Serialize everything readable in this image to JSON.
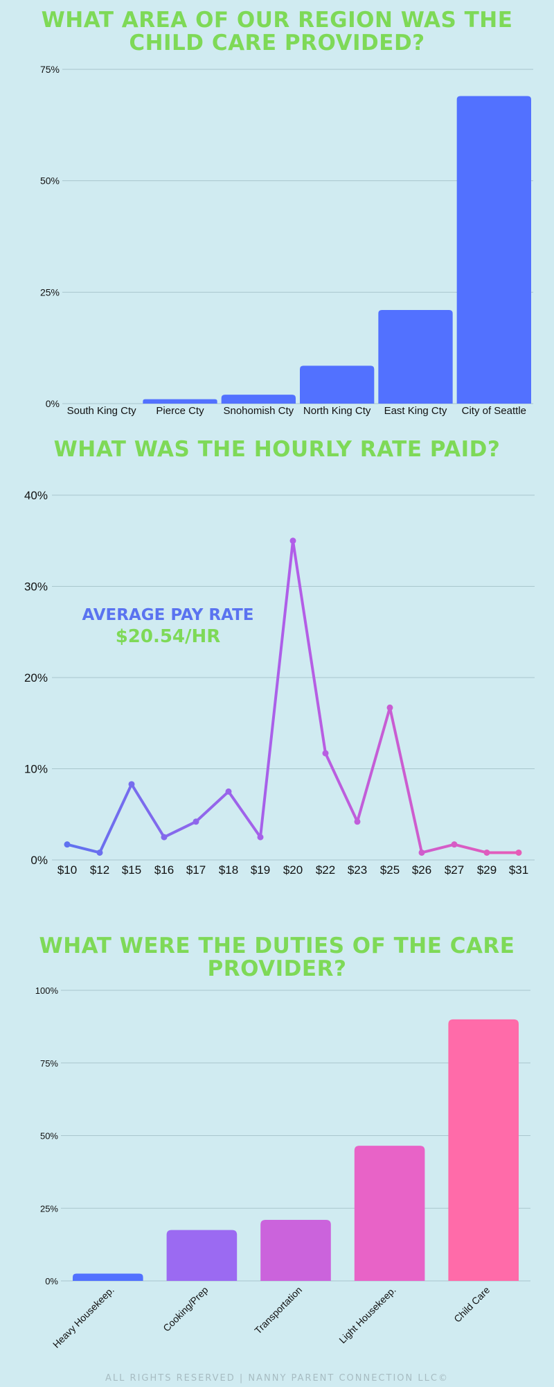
{
  "region_chart": {
    "title": "WHAT AREA OF OUR REGION WAS THE CHILD CARE PROVIDED?",
    "y_tick_labels": [
      "0%",
      "25%",
      "50%",
      "75%"
    ],
    "bar_color": "#5271ff"
  },
  "rate_chart": {
    "title": "WHAT WAS THE HOURLY RATE PAID?",
    "y_tick_labels": [
      "0%",
      "10%",
      "20%",
      "30%",
      "40%"
    ],
    "avg_title": "AVERAGE PAY RATE",
    "avg_value": "$20.54/HR",
    "gradient_start": "#5a73f0",
    "gradient_mid": "#b15ee8",
    "gradient_end": "#ea5cb4"
  },
  "duties_chart": {
    "title": "WHAT WERE THE DUTIES OF THE CARE PROVIDER?",
    "y_tick_labels": [
      "0%",
      "25%",
      "50%",
      "75%",
      "100%"
    ],
    "bar_colors": [
      "#5271ff",
      "#9b6af2",
      "#cb63dc",
      "#e863c7",
      "#ff6ba9"
    ]
  },
  "footer": "ALL RIGHTS RESERVED | NANNY PARENT CONNECTION LLC©",
  "chart_data": [
    {
      "type": "bar",
      "title": "WHAT AREA OF OUR REGION WAS THE CHILD CARE PROVIDED?",
      "categories": [
        "South King Cty",
        "Pierce Cty",
        "Snohomish Cty",
        "North King Cty",
        "East King Cty",
        "City of Seattle"
      ],
      "values": [
        0,
        1,
        2,
        8.5,
        21,
        69
      ],
      "unit": "%",
      "ylim": [
        0,
        75
      ],
      "grid": true
    },
    {
      "type": "line",
      "title": "WHAT WAS THE HOURLY RATE PAID?",
      "categories": [
        "$10",
        "$12",
        "$15",
        "$16",
        "$17",
        "$18",
        "$19",
        "$20",
        "$22",
        "$23",
        "$25",
        "$26",
        "$27",
        "$29",
        "$31"
      ],
      "values": [
        1.7,
        0.8,
        8.3,
        2.5,
        4.2,
        7.5,
        2.5,
        35,
        11.7,
        4.2,
        16.7,
        0.8,
        1.7,
        0.8,
        0.8
      ],
      "unit": "%",
      "ylim": [
        0,
        40
      ],
      "grid": true
    },
    {
      "type": "bar",
      "title": "WHAT WERE THE DUTIES OF THE CARE PROVIDER?",
      "categories": [
        "Heavy Housekeep.",
        "Cooking/Prep",
        "Transportation",
        "Light Housekeep.",
        "Child Care"
      ],
      "values": [
        2.5,
        17.5,
        21,
        46.5,
        90
      ],
      "unit": "%",
      "ylim": [
        0,
        100
      ],
      "grid": true
    }
  ]
}
